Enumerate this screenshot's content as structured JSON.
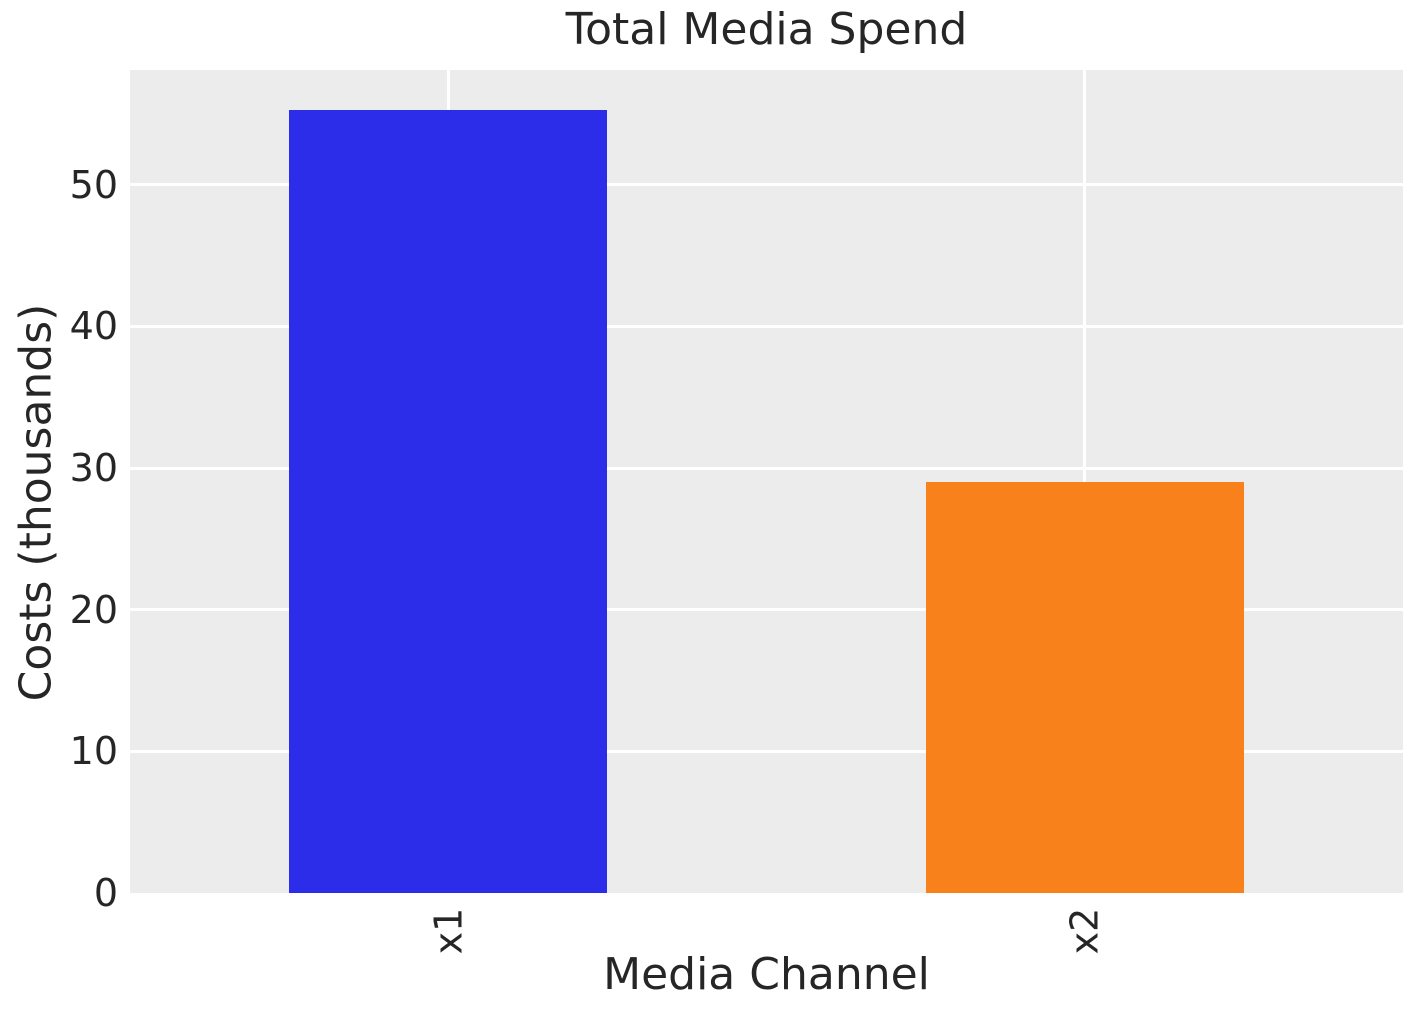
{
  "chart_data": {
    "type": "bar",
    "title": "Total Media Spend",
    "xlabel": "Media Channel",
    "ylabel": "Costs (thousands)",
    "categories": [
      "x1",
      "x2"
    ],
    "values": [
      55.3,
      29.0
    ],
    "bar_colors": [
      "#2b2de8",
      "#f8811b"
    ],
    "yticks": [
      0,
      10,
      20,
      30,
      40,
      50
    ],
    "ylim": [
      0,
      58.1
    ],
    "xtick_rotation": 90,
    "grid": "on",
    "grid_color": "#ffffff",
    "plot_background": "#ececec",
    "figure_background": "#ffffff",
    "text_color": "#262626",
    "legend_position": "none"
  }
}
